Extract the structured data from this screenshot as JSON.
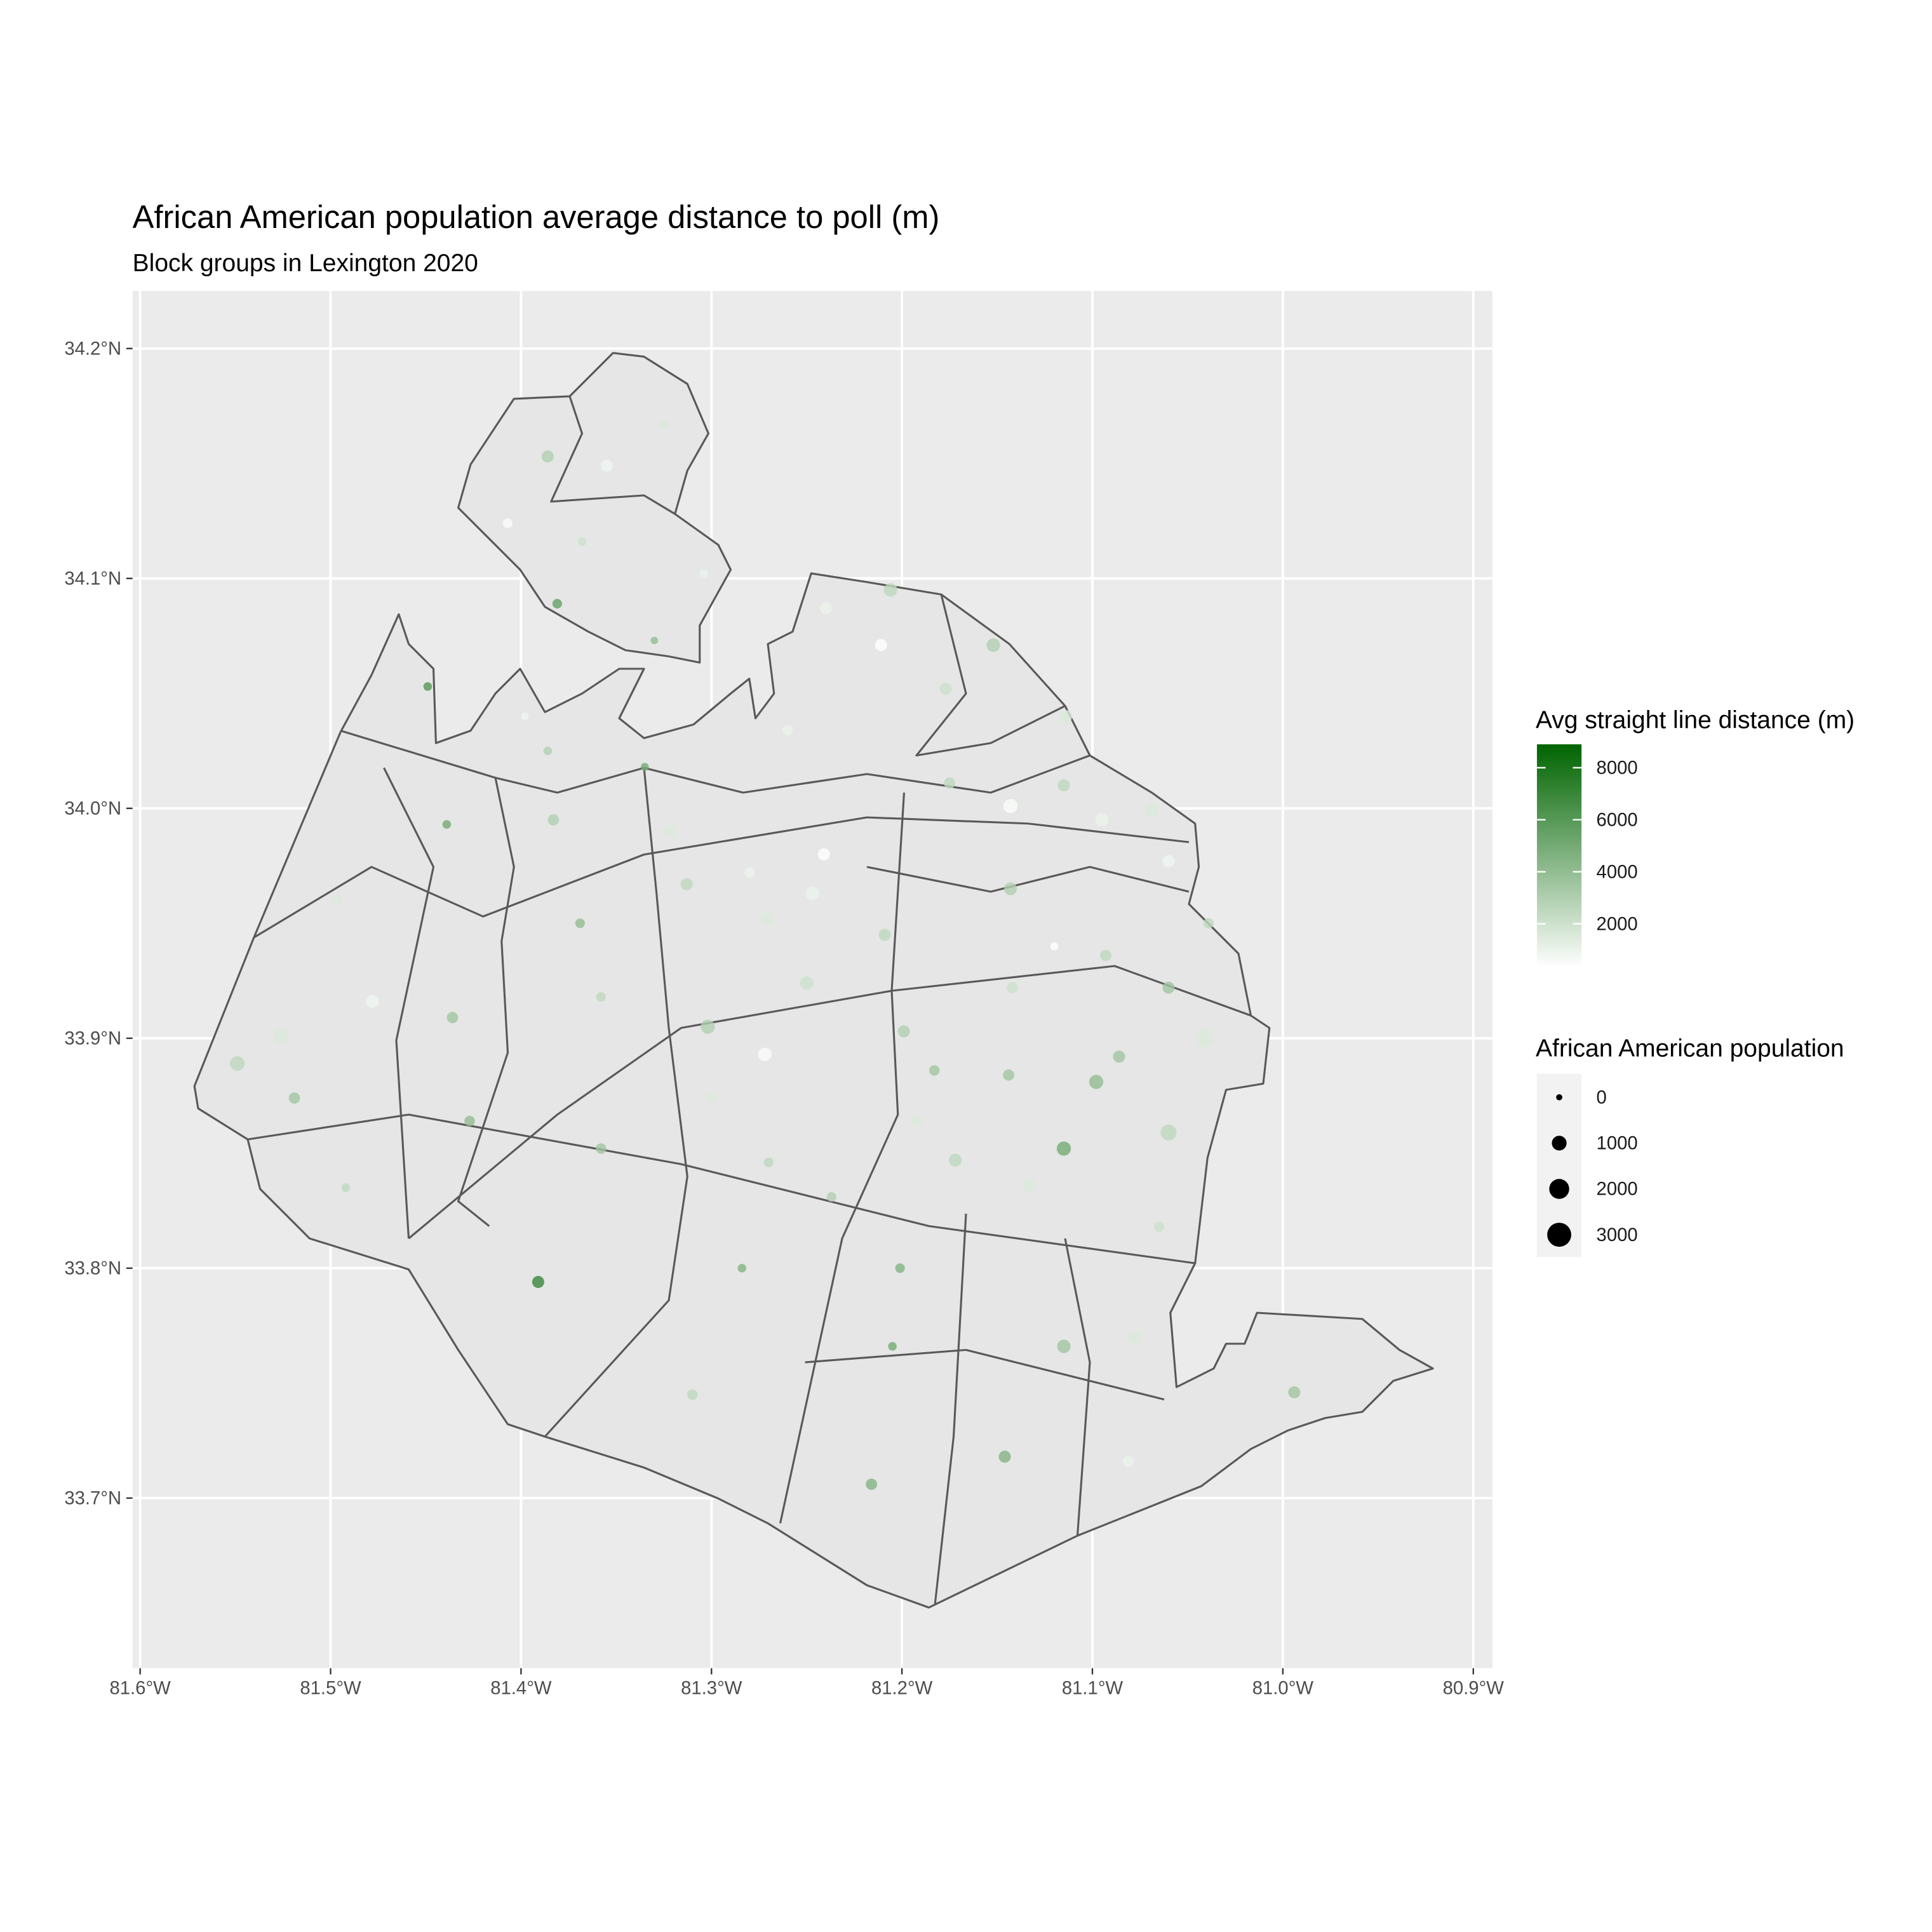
{
  "chart_data": {
    "type": "scatter",
    "title": "African American population average distance to poll (m)",
    "subtitle": "Block groups in Lexington 2020",
    "x": [
      -81.325,
      -81.386,
      -81.355,
      -81.407,
      -81.368,
      -81.381,
      -81.304,
      -81.33,
      -81.449,
      -81.398,
      -81.386,
      -81.335,
      -81.439,
      -81.383,
      -81.497,
      -81.369,
      -81.478,
      -81.436,
      -81.526,
      -81.549,
      -81.519,
      -81.427,
      -81.492,
      -81.358,
      -81.358,
      -81.391,
      -81.31,
      -81.302,
      -81.3,
      -81.313,
      -81.322,
      -81.284,
      -81.27,
      -81.237,
      -81.25,
      -81.271,
      -81.272,
      -81.216,
      -81.201,
      -81.205,
      -81.183,
      -81.172,
      -81.146,
      -81.115,
      -81.115,
      -81.078,
      -81.065,
      -81.06,
      -81.098,
      -81.086,
      -81.041,
      -81.06,
      -81.039,
      -80.994,
      -81.081,
      -81.133,
      -81.199,
      -81.144,
      -81.209,
      -81.206,
      -81.152,
      -81.175,
      -81.143,
      -81.095,
      -81.143,
      -81.093,
      -81.241,
      -81.247,
      -81.114,
      -81.177,
      -81.211,
      -81.115,
      -81.069,
      -81.06,
      -81.12,
      -81.24,
      -81.142,
      -81.26,
      -81.28,
      -81.192
    ],
    "y": [
      34.167,
      34.153,
      34.149,
      34.124,
      34.116,
      34.089,
      34.102,
      34.073,
      34.053,
      34.04,
      34.025,
      34.018,
      33.993,
      33.995,
      33.96,
      33.95,
      33.916,
      33.909,
      33.901,
      33.889,
      33.874,
      33.864,
      33.835,
      33.852,
      33.918,
      33.794,
      33.745,
      33.905,
      33.874,
      33.967,
      33.99,
      33.8,
      33.846,
      33.831,
      33.924,
      33.952,
      33.893,
      33.706,
      33.8,
      33.766,
      33.886,
      33.847,
      33.718,
      33.852,
      33.766,
      33.77,
      33.818,
      33.859,
      33.881,
      33.892,
      33.9,
      33.922,
      33.95,
      33.746,
      33.716,
      33.836,
      33.903,
      33.884,
      33.945,
      34.095,
      34.071,
      34.011,
      34.001,
      33.995,
      33.965,
      33.936,
      33.98,
      33.963,
      34.04,
      34.052,
      34.071,
      34.01,
      33.999,
      33.977,
      33.94,
      34.087,
      33.922,
      34.034,
      33.972,
      33.864
    ],
    "color_values": [
      1500,
      3000,
      800,
      500,
      2000,
      5500,
      1000,
      4000,
      6000,
      800,
      3000,
      5000,
      5000,
      3000,
      1500,
      4000,
      800,
      3500,
      1500,
      2500,
      3500,
      4000,
      2500,
      3500,
      2500,
      7000,
      2500,
      3000,
      1500,
      2500,
      1500,
      4500,
      2500,
      3000,
      2000,
      1500,
      500,
      4500,
      4500,
      5000,
      3500,
      2500,
      4500,
      5000,
      3500,
      1500,
      2000,
      2500,
      4000,
      3500,
      1500,
      3500,
      2500,
      3500,
      1000,
      1500,
      3000,
      3500,
      2500,
      2500,
      3000,
      2500,
      500,
      1000,
      3000,
      2500,
      300,
      1000,
      1500,
      2000,
      300,
      2500,
      1500,
      800,
      200,
      1000,
      2000,
      1000,
      1000,
      1500
    ],
    "size": [
      300,
      600,
      600,
      300,
      200,
      300,
      200,
      100,
      200,
      100,
      200,
      150,
      200,
      500,
      500,
      300,
      700,
      500,
      1200,
      1000,
      500,
      400,
      200,
      400,
      300,
      600,
      400,
      900,
      400,
      600,
      600,
      200,
      300,
      300,
      800,
      700,
      800,
      500,
      300,
      200,
      400,
      700,
      600,
      900,
      800,
      700,
      400,
      1200,
      900,
      600,
      1600,
      600,
      400,
      600,
      500,
      700,
      600,
      500,
      600,
      800,
      800,
      500,
      900,
      800,
      700,
      500,
      600,
      800,
      700,
      600,
      600,
      600,
      800,
      600,
      150,
      600,
      500,
      400,
      400,
      400
    ],
    "xlim": [
      -81.604,
      -80.89
    ],
    "ylim": [
      33.626,
      34.225
    ],
    "xticks": [
      {
        "value": -81.6,
        "label": "81.6°W"
      },
      {
        "value": -81.5,
        "label": "81.5°W"
      },
      {
        "value": -81.4,
        "label": "81.4°W"
      },
      {
        "value": -81.3,
        "label": "81.3°W"
      },
      {
        "value": -81.2,
        "label": "81.2°W"
      },
      {
        "value": -81.1,
        "label": "81.1°W"
      },
      {
        "value": -81.0,
        "label": "81.0°W"
      },
      {
        "value": -80.9,
        "label": "80.9°W"
      }
    ],
    "yticks": [
      {
        "value": 33.7,
        "label": "33.7°N"
      },
      {
        "value": 33.8,
        "label": "33.8°N"
      },
      {
        "value": 33.9,
        "label": "33.9°N"
      },
      {
        "value": 34.0,
        "label": "34.0°N"
      },
      {
        "value": 34.1,
        "label": "34.1°N"
      },
      {
        "value": 34.2,
        "label": "34.2°N"
      }
    ],
    "grid": true,
    "color_legend_title": "Avg straight line distance (m)",
    "color_lim": [
      330,
      8900
    ],
    "color_ticks": [
      2000,
      4000,
      6000,
      8000
    ],
    "color_low": "#ffffff",
    "color_high": "#006400",
    "size_legend_title": "African American population",
    "size_lim": [
      0,
      3200
    ],
    "size_legend": [
      0,
      1000,
      2000,
      3000
    ],
    "point_color": "#000000"
  }
}
